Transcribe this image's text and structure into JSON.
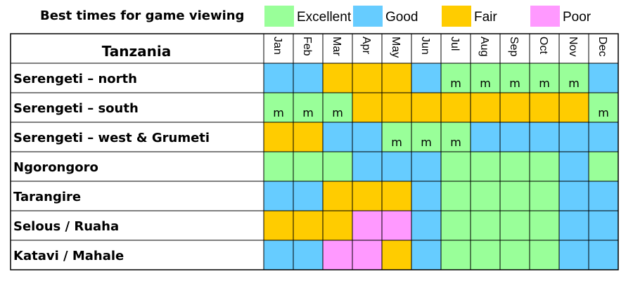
{
  "chart_data": {
    "type": "table",
    "title": "Best times for game viewing",
    "region": "Tanzania",
    "legend": [
      {
        "key": "E",
        "label": "Excellent",
        "color": "#99ff99"
      },
      {
        "key": "G",
        "label": "Good",
        "color": "#66ccff"
      },
      {
        "key": "F",
        "label": "Fair",
        "color": "#ffcc00"
      },
      {
        "key": "P",
        "label": "Poor",
        "color": "#ff99ff"
      }
    ],
    "months": [
      "Jan",
      "Feb",
      "Mar",
      "Apr",
      "May",
      "Jun",
      "Jul",
      "Aug",
      "Sep",
      "Oct",
      "Nov",
      "Dec"
    ],
    "mark_symbol": "m",
    "rows": [
      {
        "label": "Serengeti – north",
        "ratings": [
          "G",
          "G",
          "F",
          "F",
          "F",
          "G",
          "E",
          "E",
          "E",
          "E",
          "E",
          "G"
        ],
        "marks": [
          false,
          false,
          false,
          false,
          false,
          false,
          true,
          true,
          true,
          true,
          true,
          false
        ]
      },
      {
        "label": "Serengeti – south",
        "ratings": [
          "E",
          "E",
          "E",
          "F",
          "F",
          "F",
          "F",
          "F",
          "F",
          "F",
          "F",
          "E"
        ],
        "marks": [
          true,
          true,
          true,
          false,
          false,
          false,
          false,
          false,
          false,
          false,
          false,
          true
        ]
      },
      {
        "label": "Serengeti – west & Grumeti",
        "ratings": [
          "F",
          "F",
          "G",
          "G",
          "E",
          "E",
          "E",
          "G",
          "G",
          "G",
          "G",
          "G"
        ],
        "marks": [
          false,
          false,
          false,
          false,
          true,
          true,
          true,
          false,
          false,
          false,
          false,
          false
        ]
      },
      {
        "label": "Ngorongoro",
        "ratings": [
          "E",
          "E",
          "E",
          "G",
          "G",
          "G",
          "E",
          "E",
          "E",
          "E",
          "G",
          "E"
        ],
        "marks": [
          false,
          false,
          false,
          false,
          false,
          false,
          false,
          false,
          false,
          false,
          false,
          false
        ]
      },
      {
        "label": "Tarangire",
        "ratings": [
          "G",
          "G",
          "F",
          "F",
          "F",
          "G",
          "E",
          "E",
          "E",
          "E",
          "G",
          "G"
        ],
        "marks": [
          false,
          false,
          false,
          false,
          false,
          false,
          false,
          false,
          false,
          false,
          false,
          false
        ]
      },
      {
        "label": "Selous / Ruaha",
        "ratings": [
          "F",
          "F",
          "F",
          "P",
          "P",
          "G",
          "E",
          "E",
          "E",
          "E",
          "G",
          "G"
        ],
        "marks": [
          false,
          false,
          false,
          false,
          false,
          false,
          false,
          false,
          false,
          false,
          false,
          false
        ]
      },
      {
        "label": "Katavi / Mahale",
        "ratings": [
          "G",
          "G",
          "P",
          "P",
          "F",
          "G",
          "E",
          "E",
          "E",
          "E",
          "G",
          "G"
        ],
        "marks": [
          false,
          false,
          false,
          false,
          false,
          false,
          false,
          false,
          false,
          false,
          false,
          false
        ]
      }
    ]
  }
}
